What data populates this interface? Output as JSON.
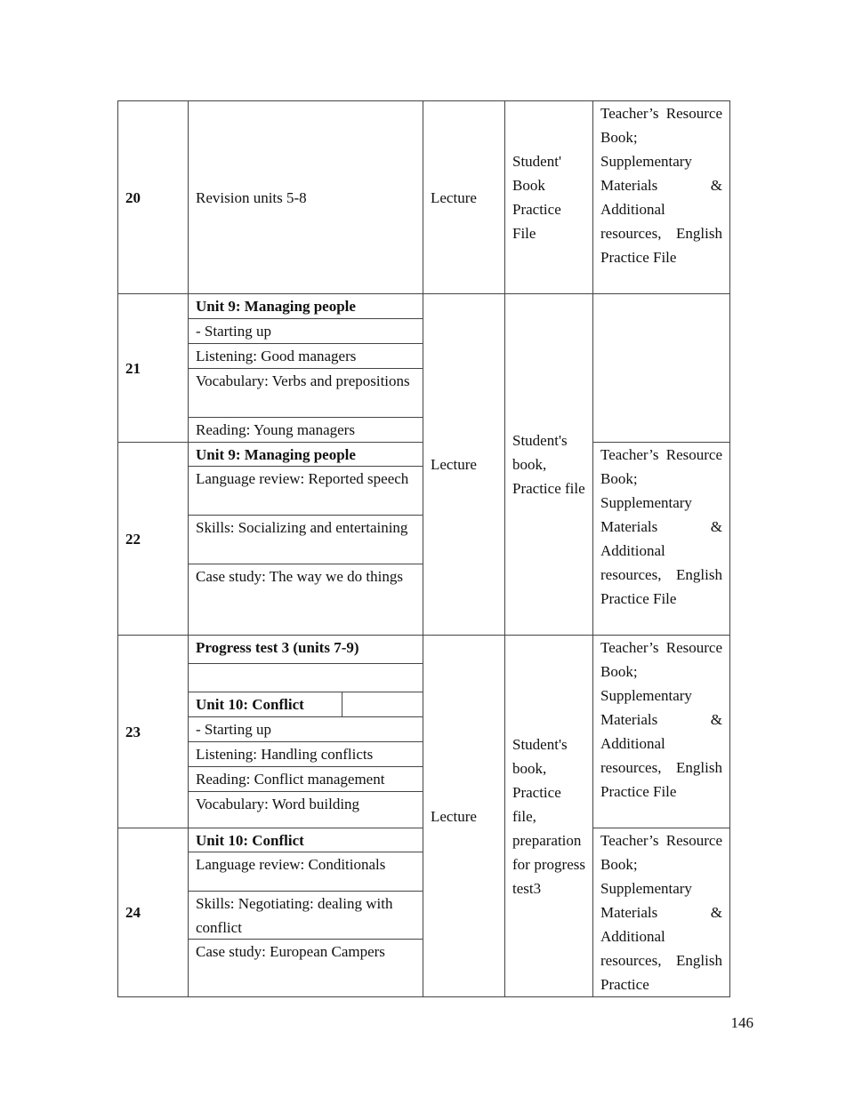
{
  "table": {
    "rows": [
      {
        "week": "20",
        "content": [
          "Revision units 5-8"
        ]
      },
      {
        "week": "21",
        "content": [
          "Unit 9: Managing people",
          "- Starting up",
          "Listening: Good managers",
          "Vocabulary: Verbs and prepositions",
          "Reading: Young managers"
        ]
      },
      {
        "week": "22",
        "content": [
          "Unit 9: Managing people",
          "Language review: Reported speech",
          "Skills: Socializing and entertaining",
          "Case study: The way we do things"
        ]
      },
      {
        "week": "23",
        "content": [
          "Progress test 3 (units 7-9)",
          "Unit 10: Conflict",
          "- Starting up",
          "Listening: Handling conflicts",
          "Reading: Conflict management",
          "Vocabulary: Word building"
        ]
      },
      {
        "week": "24",
        "content": [
          "Unit 10: Conflict",
          "Language review: Conditionals",
          "Skills: Negotiating: dealing with conflict",
          "Case study: European Campers"
        ]
      }
    ],
    "methods": [
      "Lecture",
      "Lecture",
      "Lecture"
    ],
    "materials": [
      "Student' Book Practice File",
      "Student's book, Practice file",
      "Student's book, Practice file, preparation for progress test3"
    ],
    "resources": [
      "Teacher’s Resource Book; Supplementary Materials & Additional resources, English Practice File",
      "Teacher’s Resource Book; Supplementary Materials & Additional resources, English Practice File",
      "Teacher’s Resource Book; Supplementary Materials & Additional resources, English Practice File",
      "Teacher’s Resource Book; Supplementary Materials & Additional resources, English Practice"
    ]
  },
  "page_number": "146"
}
